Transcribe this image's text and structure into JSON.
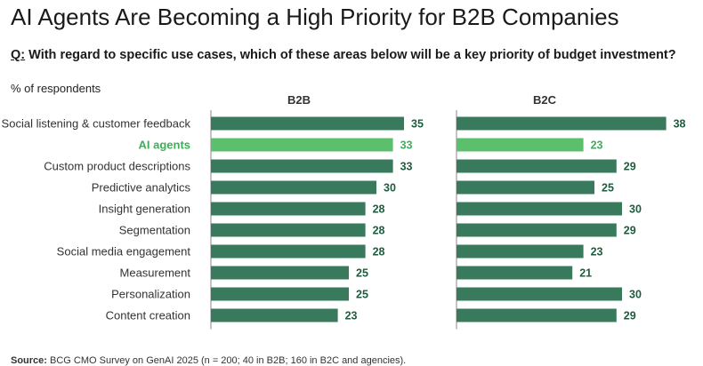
{
  "title": "AI Agents Are Becoming a High Priority for B2B Companies",
  "question": {
    "prefix": "Q:",
    "text": " With regard to specific use cases, which of these areas below will be a key priority of budget investment?"
  },
  "unit_label": "% of respondents",
  "source": {
    "prefix": "Source:",
    "text": " BCG CMO Survey on GenAI 2025 (n = 200; 40 in B2B; 160 in B2C and agencies)."
  },
  "colors": {
    "bar": "#3a7a5c",
    "highlight": "#5cbf6e",
    "highlight_text": "#3fae5a",
    "value_text": "#1f5c3f",
    "axis": "#888888"
  },
  "chart_data": {
    "type": "bar",
    "orientation": "horizontal",
    "categories": [
      "Social listening & customer feedback",
      "AI agents",
      "Custom product descriptions",
      "Predictive analytics",
      "Insight generation",
      "Segmentation",
      "Social media engagement",
      "Measurement",
      "Personalization",
      "Content creation"
    ],
    "highlight_category": "AI agents",
    "series": [
      {
        "name": "B2B",
        "values": [
          35,
          33,
          33,
          30,
          28,
          28,
          28,
          25,
          25,
          23
        ]
      },
      {
        "name": "B2C",
        "values": [
          38,
          23,
          29,
          25,
          30,
          29,
          23,
          21,
          30,
          29
        ]
      }
    ],
    "xlim": [
      0,
      40
    ],
    "grid": false,
    "legend": "none"
  }
}
